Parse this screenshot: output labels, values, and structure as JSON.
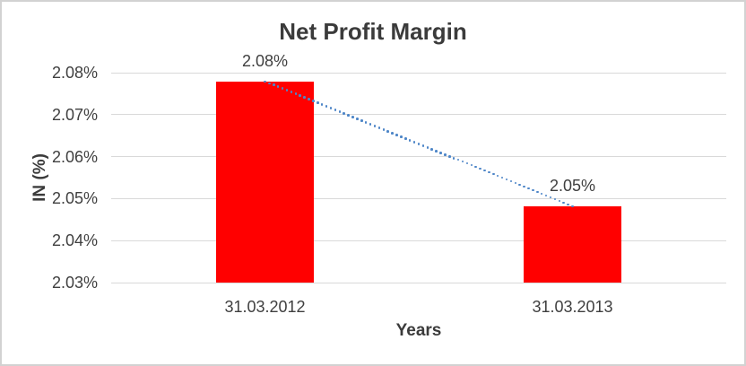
{
  "chart": {
    "title": "Net Profit Margin",
    "y_axis_title": "IN (%)",
    "x_axis_title": "Years"
  },
  "colors": {
    "bar": "#ff0000",
    "trendline": "#4e86c8",
    "gridline": "#d9d9d9",
    "text": "#3f3f3f",
    "border": "#d2d2d2"
  },
  "chart_data": {
    "type": "bar",
    "title": "Net Profit Margin",
    "xlabel": "Years",
    "ylabel": "IN (%)",
    "categories": [
      "31.03.2012",
      "31.03.2013"
    ],
    "values": [
      2.0779,
      2.0482
    ],
    "data_labels": [
      "2.08%",
      "2.05%"
    ],
    "ylim": [
      2.03,
      2.08
    ],
    "ytick_values": [
      2.08,
      2.07,
      2.06,
      2.05,
      2.04,
      2.03
    ],
    "ytick_labels": [
      "2.08%",
      "2.07%",
      "2.06%",
      "2.05%",
      "2.04%",
      "2.03%"
    ],
    "grid": true,
    "legend_position": "none",
    "trendline": {
      "type": "linear",
      "style": "dotted",
      "from_series_point": 0,
      "to_series_point": 1
    }
  }
}
